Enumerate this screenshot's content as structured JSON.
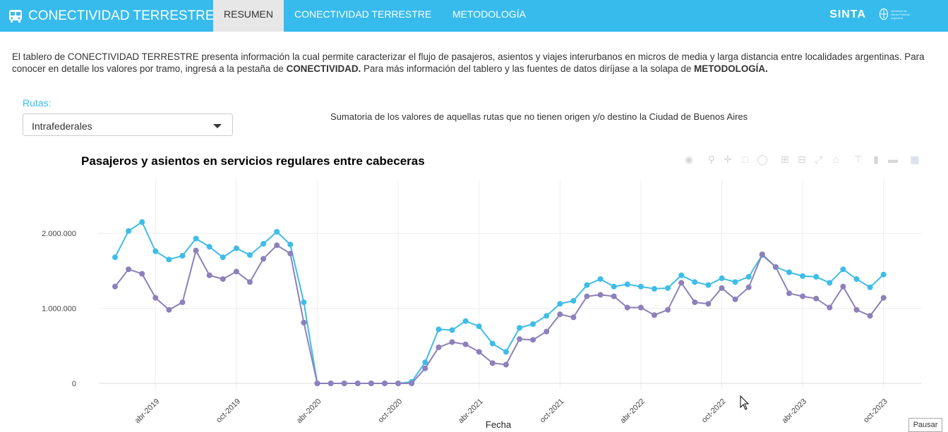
{
  "nav": {
    "brand": "CONECTIVIDAD TERRESTRE",
    "tabs": [
      {
        "label": "RESUMEN"
      },
      {
        "label": "CONECTIVIDAD TERRESTRE"
      },
      {
        "label": "METODOLOGÍA"
      }
    ],
    "sinta": "SINTA",
    "ministry_lines": [
      "Ministerio de",
      "Obras Públicas",
      "Argentina"
    ]
  },
  "intro": {
    "p1": "El tablero de CONECTIVIDAD TERRESTRE presenta información la cual permite caracterizar el flujo de pasajeros, asientos y viajes interurbanos en micros de media y larga distancia entre localidades argentinas. Para conocer en detalle los valores por tramo, ingresá a la pestaña de ",
    "b1": "CONECTIVIDAD.",
    "p2": " Para más información del tablero y las fuentes de datos diríjase a la solapa de ",
    "b2": "METODOLOGÍA."
  },
  "filter": {
    "label": "Rutas:",
    "selected": "Intrafederales"
  },
  "note": "Sumatoria de los valores de aquellas rutas que no tienen origen y/o destino la Ciudad de Buenos Aires",
  "pause_label": "Pausar",
  "icons": [
    "camera-icon",
    "zoom-icon",
    "pan-icon",
    "box-select-icon",
    "lasso-icon",
    "zoom-in-icon",
    "zoom-out-icon",
    "autoscale-icon",
    "reset-axes-icon",
    "spike-lines-icon",
    "hover-closest-icon",
    "hover-compare-icon",
    "plotly-logo-icon"
  ],
  "colors": {
    "navbar": "#37bbed",
    "series_asientos": "#3dbde8",
    "series_pasajeros": "#8d80bb"
  },
  "chart_data": {
    "type": "line",
    "title": "Pasajeros y asientos en servicios regulares entre cabeceras",
    "xlabel": "Fecha",
    "ylabel": "",
    "y_ticks": [
      0,
      1000000,
      2000000
    ],
    "y_tick_labels": [
      "0",
      "1.000.000",
      "2.000.000"
    ],
    "ylim": [
      -100000,
      2450000
    ],
    "x_tick_labels": [
      "abr-2019",
      "oct-2019",
      "abr-2020",
      "oct-2020",
      "abr-2021",
      "oct-2021",
      "abr-2022",
      "oct-2022",
      "abr-2023",
      "oct-2023"
    ],
    "x_tick_index": [
      3,
      9,
      15,
      21,
      27,
      33,
      39,
      45,
      51,
      57
    ],
    "x_start": "ene-2019",
    "grid": true,
    "legend": "none",
    "series": [
      {
        "color": "#3dbde8",
        "values": [
          1680000,
          2030000,
          2150000,
          1760000,
          1650000,
          1700000,
          1930000,
          1820000,
          1680000,
          1800000,
          1710000,
          1860000,
          2020000,
          1850000,
          1080000,
          0,
          0,
          0,
          0,
          0,
          0,
          0,
          20000,
          280000,
          720000,
          710000,
          830000,
          760000,
          530000,
          420000,
          740000,
          790000,
          900000,
          1060000,
          1100000,
          1310000,
          1390000,
          1290000,
          1320000,
          1290000,
          1260000,
          1270000,
          1440000,
          1350000,
          1310000,
          1400000,
          1350000,
          1420000,
          1710000,
          1550000,
          1480000,
          1430000,
          1420000,
          1340000,
          1520000,
          1390000,
          1280000,
          1450000
        ]
      },
      {
        "color": "#8d80bb",
        "values": [
          1290000,
          1520000,
          1460000,
          1140000,
          980000,
          1080000,
          1770000,
          1440000,
          1390000,
          1490000,
          1350000,
          1660000,
          1840000,
          1730000,
          810000,
          0,
          0,
          0,
          0,
          0,
          0,
          0,
          0,
          200000,
          480000,
          550000,
          520000,
          420000,
          270000,
          250000,
          590000,
          580000,
          690000,
          920000,
          880000,
          1160000,
          1180000,
          1160000,
          1010000,
          1010000,
          910000,
          980000,
          1340000,
          1080000,
          1060000,
          1270000,
          1120000,
          1280000,
          1720000,
          1550000,
          1200000,
          1160000,
          1130000,
          1010000,
          1290000,
          980000,
          900000,
          1140000
        ]
      }
    ]
  }
}
